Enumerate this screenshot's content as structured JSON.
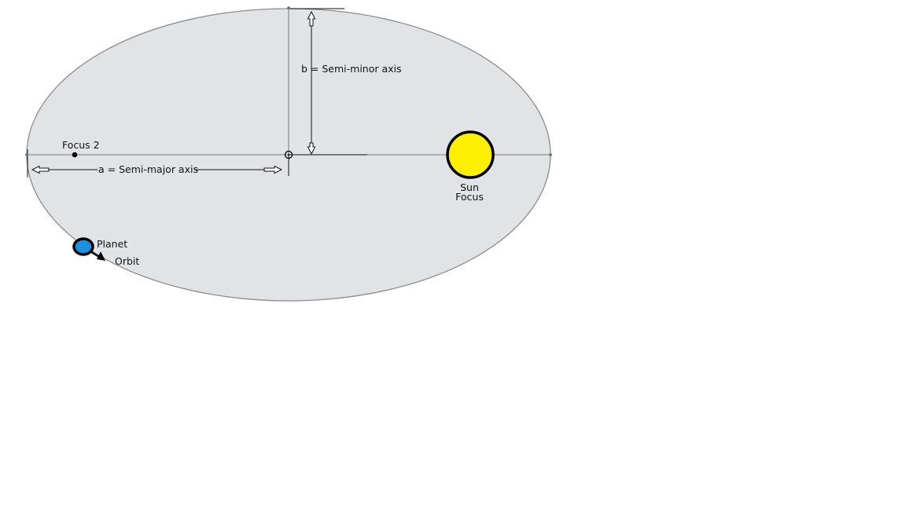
{
  "labels": {
    "semi_minor": "b = Semi-minor axis",
    "semi_major": "a =  Semi-major axis",
    "focus2": "Focus 2",
    "sun_line1": "Sun",
    "sun_line2": "Focus",
    "planet": "Planet",
    "orbit": "Orbit"
  },
  "colors": {
    "ellipse_fill": "#e1e4e7",
    "ellipse_stroke": "#8c8c8c",
    "sun_fill": "#ffef00",
    "sun_stroke": "#000000",
    "planet_fill": "#1e90e0",
    "planet_stroke": "#000000"
  }
}
